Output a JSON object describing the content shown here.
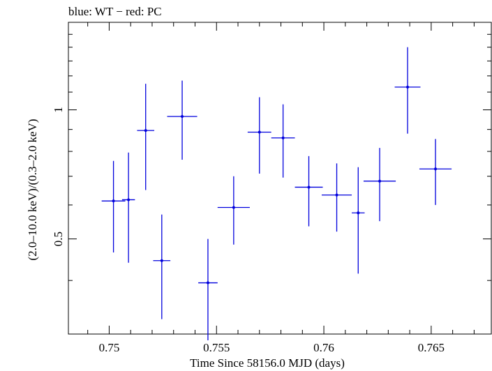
{
  "chart_data": {
    "type": "scatter",
    "title": "blue: WT − red: PC",
    "xlabel": "Time Since 58156.0 MJD (days)",
    "ylabel": "(2.0–10.0 keV)/(0.3–2.0 keV)",
    "xlim": [
      0.7481,
      0.7678
    ],
    "ylim": [
      0.3,
      1.6
    ],
    "y_scale": "log",
    "grid": false,
    "xticks": [
      {
        "value": 0.75,
        "label": "0.75"
      },
      {
        "value": 0.755,
        "label": "0.755"
      },
      {
        "value": 0.76,
        "label": "0.76"
      },
      {
        "value": 0.765,
        "label": "0.765"
      }
    ],
    "yticks": [
      {
        "value": 0.5,
        "label": "0.5"
      },
      {
        "value": 1,
        "label": "1"
      }
    ],
    "series": [
      {
        "color": "#0000dd",
        "points": [
          {
            "x": 0.7502,
            "xerr": 0.00055,
            "y": 0.613,
            "ylo": 0.465,
            "yhi": 0.76
          },
          {
            "x": 0.7509,
            "xerr": 0.0003,
            "y": 0.617,
            "ylo": 0.44,
            "yhi": 0.795
          },
          {
            "x": 0.7517,
            "xerr": 0.0004,
            "y": 0.895,
            "ylo": 0.65,
            "yhi": 1.15
          },
          {
            "x": 0.75245,
            "xerr": 0.0004,
            "y": 0.445,
            "ylo": 0.325,
            "yhi": 0.57
          },
          {
            "x": 0.7534,
            "xerr": 0.0007,
            "y": 0.965,
            "ylo": 0.765,
            "yhi": 1.17
          },
          {
            "x": 0.7546,
            "xerr": 0.00045,
            "y": 0.395,
            "ylo": 0.29,
            "yhi": 0.5
          },
          {
            "x": 0.7558,
            "xerr": 0.00075,
            "y": 0.592,
            "ylo": 0.485,
            "yhi": 0.7
          },
          {
            "x": 0.757,
            "xerr": 0.00055,
            "y": 0.887,
            "ylo": 0.71,
            "yhi": 1.07
          },
          {
            "x": 0.7581,
            "xerr": 0.00055,
            "y": 0.86,
            "ylo": 0.695,
            "yhi": 1.03
          },
          {
            "x": 0.7593,
            "xerr": 0.00065,
            "y": 0.66,
            "ylo": 0.535,
            "yhi": 0.78
          },
          {
            "x": 0.7606,
            "xerr": 0.0007,
            "y": 0.633,
            "ylo": 0.52,
            "yhi": 0.75
          },
          {
            "x": 0.7616,
            "xerr": 0.0003,
            "y": 0.575,
            "ylo": 0.415,
            "yhi": 0.735
          },
          {
            "x": 0.7626,
            "xerr": 0.00075,
            "y": 0.682,
            "ylo": 0.55,
            "yhi": 0.815
          },
          {
            "x": 0.7639,
            "xerr": 0.0006,
            "y": 1.13,
            "ylo": 0.88,
            "yhi": 1.4
          },
          {
            "x": 0.7652,
            "xerr": 0.00075,
            "y": 0.728,
            "ylo": 0.6,
            "yhi": 0.855
          }
        ]
      }
    ]
  }
}
